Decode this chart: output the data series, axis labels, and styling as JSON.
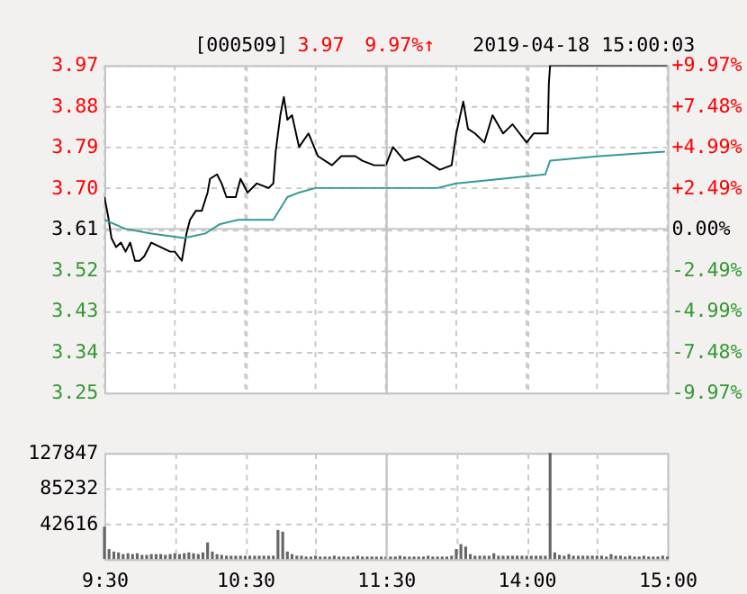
{
  "chart_data": [
    {
      "type": "line",
      "annotations": [
        "[000509]",
        "3.97",
        "9.97%↑",
        "2019-04-18 15:00:03"
      ],
      "xlim": [
        9.5,
        11.5
      ],
      "xticks": [
        {
          "value": 9.5,
          "label": null
        },
        {
          "value": 10,
          "label": null
        },
        {
          "value": 10.5,
          "label": null
        },
        {
          "value": 11,
          "label": null
        },
        {
          "value": 11.5,
          "label": null
        }
      ],
      "ylim": [
        3.25,
        3.97
      ],
      "yticks": [
        3.97,
        3.88,
        3.79,
        {
          "value": 3.7,
          "label": "3.70"
        },
        3.61,
        3.52,
        3.43,
        3.34,
        3.25
      ],
      "tick_labels": "y",
      "grid": true,
      "line_style": "solid",
      "ref_lines": [
        {
          "axis": "y",
          "value": 3.61,
          "color": "#c0c0c0",
          "line_style": "solid"
        }
      ],
      "series": [
        {
          "color": "#000000",
          "x": [
            9.5,
            9.525,
            9.55,
            9.583,
            9.617,
            9.65,
            9.683,
            9.717,
            9.75,
            9.783,
            9.833,
            9.9,
            9.967,
            10,
            10.05,
            10.083,
            10.108,
            10.15,
            10.192,
            10.233,
            10.25,
            10.3,
            10.333,
            10.367,
            10.433,
            10.467,
            10.517,
            10.583,
            10.667,
            10.7,
            10.717,
            10.75,
            10.775,
            10.8,
            10.833,
            10.883,
            10.95,
            11.017,
            11.117,
            11.183,
            11.283,
            11.333,
            11.417,
            11.483,
            11.5
          ],
          "values": [
            3.68,
            3.64,
            3.59,
            3.57,
            3.58,
            3.56,
            3.58,
            3.54,
            3.54,
            3.55,
            3.58,
            3.57,
            3.56,
            3.56,
            3.54,
            3.6,
            3.63,
            3.65,
            3.65,
            3.69,
            3.72,
            3.73,
            3.71,
            3.68,
            3.68,
            3.72,
            3.69,
            3.71,
            3.7,
            3.71,
            3.78,
            3.86,
            3.9,
            3.85,
            3.86,
            3.79,
            3.82,
            3.77,
            3.75,
            3.77,
            3.77,
            3.76,
            3.75,
            3.75,
            3.75
          ]
        },
        {
          "color": "#339999",
          "x": [
            9.5,
            9.65,
            9.833,
            10.067,
            10.217,
            10.317,
            10.45,
            10.7,
            10.8,
            10.883,
            11,
            11.333,
            11.5
          ],
          "values": [
            3.63,
            3.61,
            3.6,
            3.59,
            3.6,
            3.62,
            3.63,
            3.63,
            3.68,
            3.69,
            3.7,
            3.7,
            3.7
          ]
        }
      ]
    },
    {
      "type": "line",
      "xlim": [
        13,
        15
      ],
      "xticks": [
        {
          "value": 13,
          "label": null
        },
        {
          "value": 13.5,
          "label": null
        },
        {
          "value": 14,
          "label": null
        },
        {
          "value": 14.5,
          "label": null
        },
        {
          "value": 15,
          "label": null
        }
      ],
      "ylim": [
        3.25,
        3.97
      ],
      "yticks": [
        {
          "value": 3.97,
          "label": null
        },
        {
          "value": 3.88,
          "label": null
        },
        {
          "value": 3.79,
          "label": null
        },
        {
          "value": 3.7,
          "label": null
        },
        {
          "value": 3.61,
          "label": null
        },
        {
          "value": 3.52,
          "label": null
        },
        {
          "value": 3.43,
          "label": null
        },
        {
          "value": 3.34,
          "label": null
        },
        {
          "value": 3.25,
          "label": null
        }
      ],
      "y2lim": [
        -9.97,
        9.97
      ],
      "y2ticks": [
        {
          "value": 9.97,
          "label": "+9.97%"
        },
        {
          "value": 7.48,
          "label": "+7.48%"
        },
        {
          "value": 4.99,
          "label": "+4.99%"
        },
        {
          "value": 2.49,
          "label": "+2.49%"
        },
        {
          "value": 0,
          "label": "0.00%"
        },
        {
          "value": -2.49,
          "label": "-2.49%"
        },
        {
          "value": -4.99,
          "label": "-4.99%"
        },
        {
          "value": -7.48,
          "label": "-7.48%"
        },
        {
          "value": -9.97,
          "label": "-9.97%"
        }
      ],
      "tick_labels": false,
      "grid": true,
      "line_style": "solid",
      "ref_lines": [
        {
          "axis": "y",
          "value": 3.61,
          "color": "#c0c0c0",
          "line_style": "solid"
        }
      ],
      "series": [
        {
          "color": "#000000",
          "x": [
            13,
            13.05,
            13.133,
            13.233,
            13.383,
            13.467,
            13.5,
            13.55,
            13.583,
            13.633,
            13.7,
            13.758,
            13.833,
            13.9,
            13.95,
            14,
            14.05,
            14.117,
            14.15,
            14.158,
            14.167,
            15
          ],
          "values": [
            3.75,
            3.79,
            3.76,
            3.77,
            3.74,
            3.75,
            3.82,
            3.89,
            3.83,
            3.82,
            3.8,
            3.86,
            3.82,
            3.84,
            3.82,
            3.8,
            3.82,
            3.82,
            3.82,
            3.93,
            3.97,
            3.97
          ]
        },
        {
          "color": "#339999",
          "x": [
            13,
            13.217,
            13.367,
            13.5,
            14.133,
            14.167,
            14.517,
            14.983
          ],
          "values": [
            3.7,
            3.7,
            3.7,
            3.71,
            3.73,
            3.76,
            3.77,
            3.78
          ]
        }
      ]
    },
    {
      "type": "bar",
      "xlim": [
        9.5,
        11.5
      ],
      "xticks": [
        {
          "value": 9.5,
          "label": "9:30"
        },
        {
          "value": 10,
          "label": null
        },
        {
          "value": 10.5,
          "label": "10:30"
        },
        {
          "value": 11,
          "label": null
        },
        {
          "value": 11.5,
          "label": "11:30"
        }
      ],
      "ylim": [
        0,
        127847
      ],
      "yticks": [
        {
          "value": 0,
          "label": null
        },
        42616,
        85232,
        127847
      ],
      "grid": true,
      "color": "#666666",
      "x": [
        9.5,
        9.533,
        9.567,
        9.6,
        9.633,
        9.667,
        9.7,
        9.733,
        9.767,
        9.8,
        9.833,
        9.867,
        9.9,
        9.933,
        9.967,
        10,
        10.033,
        10.067,
        10.1,
        10.133,
        10.167,
        10.2,
        10.233,
        10.267,
        10.3,
        10.333,
        10.367,
        10.4,
        10.433,
        10.467,
        10.5,
        10.533,
        10.567,
        10.6,
        10.633,
        10.667,
        10.7,
        10.733,
        10.767,
        10.8,
        10.833,
        10.867,
        10.9,
        10.933,
        10.967,
        11,
        11.033,
        11.067,
        11.1,
        11.133,
        11.167,
        11.2,
        11.233,
        11.267,
        11.3,
        11.333,
        11.367,
        11.4,
        11.433,
        11.467,
        11.5
      ],
      "values": [
        39000,
        12000,
        9000,
        8000,
        6000,
        7000,
        6000,
        7000,
        5000,
        5000,
        6000,
        6000,
        6000,
        5000,
        6000,
        7000,
        6000,
        7000,
        8000,
        7000,
        6000,
        8000,
        20000,
        9000,
        6000,
        5000,
        4000,
        4000,
        4000,
        4000,
        4000,
        4000,
        4000,
        4000,
        4000,
        4000,
        4000,
        35000,
        33000,
        9000,
        6000,
        4000,
        4000,
        3000,
        3000,
        4000,
        3000,
        3000,
        3000,
        4000,
        3000,
        3000,
        3000,
        3000,
        4000,
        3000,
        3000,
        3000,
        3000,
        3000,
        3000
      ]
    },
    {
      "type": "bar",
      "xlim": [
        13,
        15
      ],
      "xticks": [
        {
          "value": 13,
          "label": null
        },
        {
          "value": 13.5,
          "label": null
        },
        {
          "value": 14,
          "label": "14:00"
        },
        {
          "value": 14.5,
          "label": null
        },
        {
          "value": 15,
          "label": "15:00"
        }
      ],
      "ylim": [
        0,
        127847
      ],
      "yticks": [
        {
          "value": 0,
          "label": null
        },
        {
          "value": 42616,
          "label": null
        },
        {
          "value": 85232,
          "label": null
        },
        {
          "value": 127847,
          "label": null
        }
      ],
      "tick_labels": "x",
      "grid": true,
      "color": "#666666",
      "x": [
        13.033,
        13.067,
        13.1,
        13.133,
        13.167,
        13.2,
        13.233,
        13.267,
        13.3,
        13.333,
        13.367,
        13.4,
        13.433,
        13.467,
        13.5,
        13.533,
        13.567,
        13.6,
        13.633,
        13.667,
        13.7,
        13.733,
        13.767,
        13.8,
        13.833,
        13.867,
        13.9,
        13.933,
        13.967,
        14,
        14.033,
        14.067,
        14.1,
        14.133,
        14.167,
        14.2,
        14.233,
        14.267,
        14.3,
        14.333,
        14.367,
        14.4,
        14.433,
        14.467,
        14.5,
        14.533,
        14.567,
        14.6,
        14.633,
        14.667,
        14.7,
        14.733,
        14.767,
        14.8,
        14.833,
        14.867,
        14.9,
        14.933,
        14.967,
        15
      ],
      "values": [
        3000,
        3000,
        4000,
        3000,
        3000,
        3000,
        3000,
        3000,
        4000,
        3000,
        3000,
        3000,
        3000,
        4000,
        12000,
        18000,
        15000,
        6000,
        4000,
        4000,
        4000,
        4000,
        7000,
        4000,
        4000,
        4000,
        4000,
        4000,
        4000,
        4000,
        4000,
        4000,
        4000,
        4000,
        127847,
        8000,
        5000,
        4000,
        6000,
        4000,
        4000,
        4000,
        4000,
        4000,
        4000,
        4000,
        3000,
        6000,
        4000,
        4000,
        3000,
        4000,
        3000,
        3000,
        4000,
        3000,
        3000,
        3000,
        4000,
        3000
      ]
    }
  ]
}
